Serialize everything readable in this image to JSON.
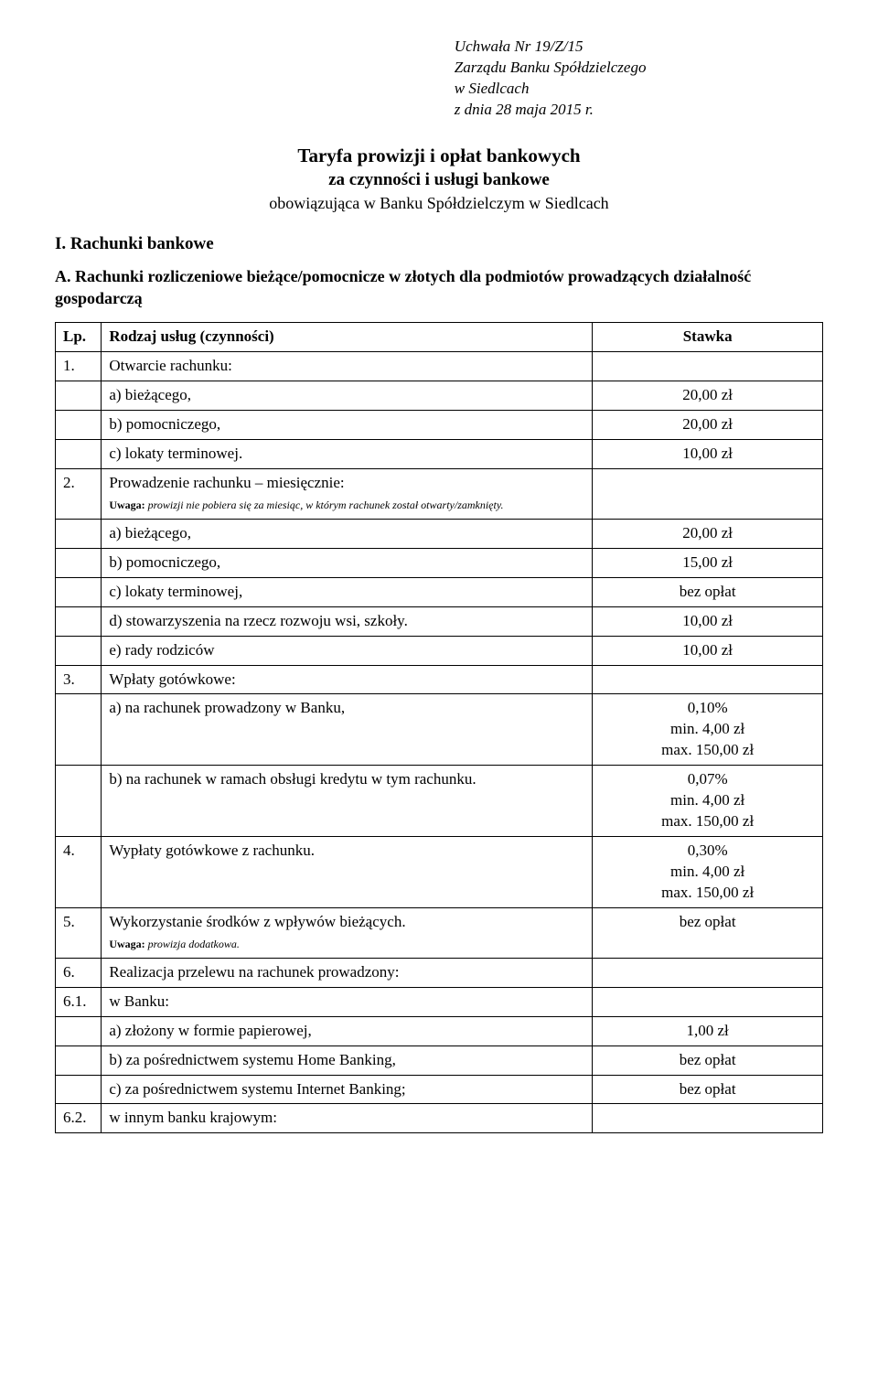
{
  "header": {
    "line1": "Uchwała Nr 19/Z/15",
    "line2": "Zarządu Banku Spółdzielczego",
    "line3": "w Siedlcach",
    "line4": "z dnia 28 maja 2015 r."
  },
  "title": {
    "main": "Taryfa prowizji i opłat bankowych",
    "sub": "za czynności i usługi bankowe",
    "tertiary": "obowiązująca w Banku Spółdzielczym w Siedlcach"
  },
  "section": "I. Rachunki bankowe",
  "subsection": "A. Rachunki rozliczeniowe bieżące/pomocnicze w złotych dla podmiotów prowadzących działalność gospodarczą",
  "table": {
    "head": {
      "lp": "Lp.",
      "desc": "Rodzaj usług (czynności)",
      "val": "Stawka"
    },
    "rows": [
      {
        "lp": "1.",
        "desc": "Otwarcie rachunku:",
        "val": ""
      },
      {
        "lp": "",
        "desc": "a) bieżącego,",
        "val": "20,00 zł"
      },
      {
        "lp": "",
        "desc": "b) pomocniczego,",
        "val": "20,00 zł"
      },
      {
        "lp": "",
        "desc": "c) lokaty terminowej.",
        "val": "10,00 zł"
      },
      {
        "lp": "2.",
        "desc": "Prowadzenie rachunku – miesięcznie:",
        "note_label": "Uwaga:",
        "note": " prowizji nie pobiera się za miesiąc, w którym rachunek został otwarty/zamknięty.",
        "val": ""
      },
      {
        "lp": "",
        "desc": "a) bieżącego,",
        "val": "20,00 zł"
      },
      {
        "lp": "",
        "desc": "b) pomocniczego,",
        "val": "15,00 zł"
      },
      {
        "lp": "",
        "desc": "c) lokaty terminowej,",
        "val": "bez opłat"
      },
      {
        "lp": "",
        "desc": "d) stowarzyszenia na rzecz rozwoju wsi, szkoły.",
        "val": "10,00 zł"
      },
      {
        "lp": "",
        "desc": "e) rady rodziców",
        "val": "10,00 zł"
      },
      {
        "lp": "3.",
        "desc": "Wpłaty gotówkowe:",
        "val": ""
      },
      {
        "lp": "",
        "desc": "a) na rachunek prowadzony w Banku,",
        "val_lines": [
          "0,10%",
          "min. 4,00 zł",
          "max. 150,00 zł"
        ]
      },
      {
        "lp": "",
        "desc": "b) na rachunek w ramach obsługi kredytu w tym rachunku.",
        "val_lines": [
          "0,07%",
          "min. 4,00 zł",
          "max. 150,00 zł"
        ]
      },
      {
        "lp": "4.",
        "desc": "Wypłaty gotówkowe z rachunku.",
        "val_lines": [
          "0,30%",
          "min. 4,00 zł",
          "max. 150,00 zł"
        ]
      },
      {
        "lp": "5.",
        "desc": "Wykorzystanie środków z wpływów bieżących.",
        "note_label": "Uwaga:",
        "note": " prowizja dodatkowa.",
        "val": "bez opłat"
      },
      {
        "lp": "6.",
        "desc": "Realizacja przelewu na rachunek prowadzony:",
        "val": ""
      },
      {
        "lp": "6.1.",
        "desc": "w Banku:",
        "val": ""
      },
      {
        "lp": "",
        "desc": "a) złożony w formie papierowej,",
        "val": "1,00 zł"
      },
      {
        "lp": "",
        "desc": "b) za pośrednictwem systemu Home Banking,",
        "val": "bez opłat"
      },
      {
        "lp": "",
        "desc": "c) za pośrednictwem systemu Internet Banking;",
        "val": "bez opłat"
      },
      {
        "lp": "6.2.",
        "desc": "w innym banku krajowym:",
        "val": ""
      }
    ]
  }
}
